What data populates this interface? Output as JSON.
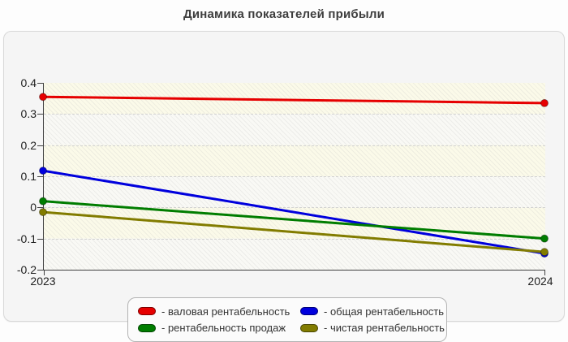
{
  "title": "Динамика показателей прибыли",
  "chart_data": {
    "type": "line",
    "title": "Динамика показателей прибыли",
    "x_labels": [
      "2023",
      "2024"
    ],
    "ylim": [
      -0.2,
      0.4
    ],
    "ytick_labels": [
      "0.4",
      "0.3",
      "0.2",
      "0.1",
      "0",
      "-0.1",
      "-0.2"
    ],
    "ytick_values": [
      0.4,
      0.3,
      0.2,
      0.1,
      0,
      -0.1,
      -0.2
    ],
    "grid": "horizontal-dashed",
    "legend_position": "bottom-center",
    "plot_background": {
      "band_colors": [
        "#fbfae9",
        "#f9f9f5"
      ],
      "hatch": "diagonal-45deg"
    },
    "series": [
      {
        "name": "валовая рентабельность",
        "legend_label": "- валовая рентабельность",
        "color": "#e60000",
        "values": [
          0.355,
          0.335
        ]
      },
      {
        "name": "общая рентабельность",
        "legend_label": "- общая рентабельность",
        "color": "#0000dd",
        "values": [
          0.118,
          -0.148
        ]
      },
      {
        "name": "рентабельность продаж",
        "legend_label": "- рентабельность продаж",
        "color": "#007d00",
        "values": [
          0.02,
          -0.1
        ]
      },
      {
        "name": "чистая рентабельность",
        "legend_label": "- чистая рентабельность",
        "color": "#827c00",
        "values": [
          -0.015,
          -0.143
        ]
      }
    ]
  }
}
